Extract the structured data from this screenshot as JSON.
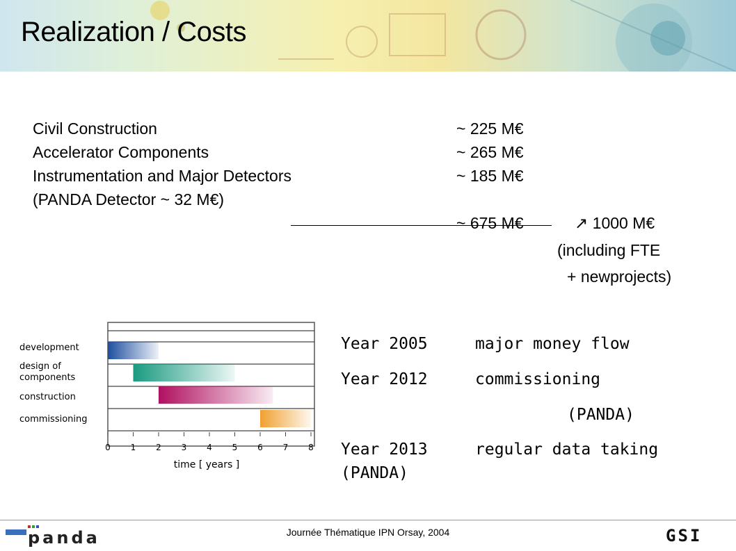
{
  "slide": {
    "title": "Realization / Costs",
    "footer": "Journée Thématique IPN Orsay, 2004"
  },
  "costs": {
    "items": [
      {
        "label": "Civil Construction",
        "value": "~ 225 M€"
      },
      {
        "label": "Accelerator Components",
        "value": "~ 265 M€"
      },
      {
        "label": "Instrumentation and Major Detectors",
        "value": "~ 185 M€"
      }
    ],
    "note": "(PANDA Detector ~ 32 M€)",
    "total": "~ 675 M€",
    "total_arrow": "↗ 1000 M€",
    "including_1": "(including FTE",
    "including_2": "+ newprojects)"
  },
  "timeline": [
    {
      "year": "Year 2005",
      "event": "major money flow"
    },
    {
      "year": "Year 2012",
      "event": "commissioning"
    },
    {
      "year": "",
      "event": "(PANDA)"
    },
    {
      "year": "Year 2013",
      "event": "regular data taking"
    },
    {
      "year": "(PANDA)",
      "event": ""
    }
  ],
  "chart_data": {
    "type": "bar",
    "chart_subtype": "gantt",
    "xlabel": "time [ years ]",
    "xlim": [
      0,
      8
    ],
    "x_ticks": [
      "0",
      "1",
      "2",
      "3",
      "4",
      "5",
      "6",
      "7",
      "8"
    ],
    "grid": true,
    "series": [
      {
        "name": "development",
        "start": 0,
        "end": 2,
        "color": "#1f4fa0"
      },
      {
        "name": "design of components",
        "start": 1,
        "end": 5,
        "color": "#1a9a80"
      },
      {
        "name": "construction",
        "start": 2,
        "end": 6.5,
        "color": "#b01060"
      },
      {
        "name": "commissioning",
        "start": 6,
        "end": 8,
        "color": "#f0a030"
      }
    ]
  },
  "logos": {
    "left": "panda",
    "right": "GSI"
  }
}
